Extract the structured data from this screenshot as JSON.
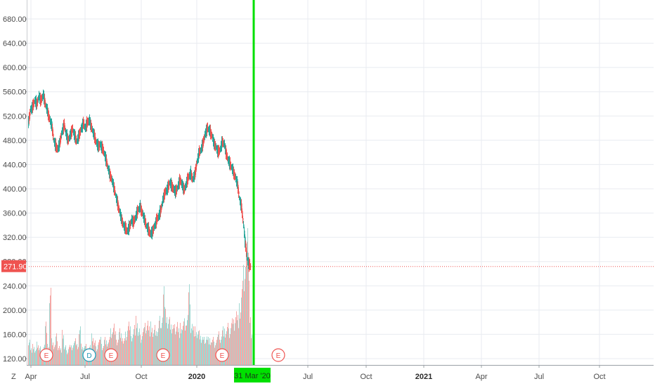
{
  "chart_data": {
    "type": "candlestick",
    "title": "",
    "y_axis": {
      "ticks": [
        "120.00",
        "160.00",
        "200.00",
        "240.00",
        "280.00",
        "320.00",
        "360.00",
        "400.00",
        "440.00",
        "480.00",
        "520.00",
        "560.00",
        "600.00",
        "640.00",
        "680.00"
      ],
      "values": [
        120,
        160,
        200,
        240,
        280,
        320,
        360,
        400,
        440,
        480,
        520,
        560,
        600,
        640,
        680
      ],
      "ylim": [
        112,
        700
      ]
    },
    "x_axis": {
      "ticks": [
        {
          "label": "Apr",
          "bold": false
        },
        {
          "label": "Jul",
          "bold": false
        },
        {
          "label": "Oct",
          "bold": false
        },
        {
          "label": "2020",
          "bold": true
        },
        {
          "label": "Jul",
          "bold": false
        },
        {
          "label": "Oct",
          "bold": false
        },
        {
          "label": "2021",
          "bold": true
        },
        {
          "label": "Apr",
          "bold": false
        },
        {
          "label": "Jul",
          "bold": false
        },
        {
          "label": "Oct",
          "bold": false
        }
      ]
    },
    "current_price": {
      "label": "271.90",
      "value": 271.9,
      "color": "#ef5350"
    },
    "cursor": {
      "date_label": "31 Mar '20",
      "color": "#00e000"
    },
    "corner_label": "Z",
    "colors": {
      "up": "#26a69a",
      "down": "#ef5350",
      "volume_up": "#9fd8d2",
      "volume_down": "#f5a9a7",
      "grid": "#e8ebf0"
    },
    "price_path": [
      [
        0,
        510
      ],
      [
        3,
        530
      ],
      [
        6,
        535
      ],
      [
        9,
        545
      ],
      [
        12,
        540
      ],
      [
        15,
        552
      ],
      [
        18,
        545
      ],
      [
        21,
        555
      ],
      [
        24,
        540
      ],
      [
        27,
        528
      ],
      [
        30,
        515
      ],
      [
        33,
        505
      ],
      [
        36,
        480
      ],
      [
        39,
        470
      ],
      [
        42,
        465
      ],
      [
        45,
        478
      ],
      [
        48,
        495
      ],
      [
        51,
        505
      ],
      [
        54,
        488
      ],
      [
        57,
        480
      ],
      [
        60,
        490
      ],
      [
        63,
        498
      ],
      [
        66,
        486
      ],
      [
        69,
        478
      ],
      [
        72,
        488
      ],
      [
        75,
        498
      ],
      [
        78,
        508
      ],
      [
        81,
        500
      ],
      [
        84,
        510
      ],
      [
        87,
        512
      ],
      [
        90,
        500
      ],
      [
        93,
        490
      ],
      [
        96,
        478
      ],
      [
        99,
        470
      ],
      [
        102,
        472
      ],
      [
        105,
        468
      ],
      [
        108,
        458
      ],
      [
        111,
        445
      ],
      [
        114,
        430
      ],
      [
        117,
        420
      ],
      [
        120,
        410
      ],
      [
        123,
        395
      ],
      [
        126,
        380
      ],
      [
        129,
        365
      ],
      [
        132,
        352
      ],
      [
        135,
        340
      ],
      [
        138,
        335
      ],
      [
        141,
        330
      ],
      [
        144,
        338
      ],
      [
        147,
        348
      ],
      [
        150,
        345
      ],
      [
        153,
        355
      ],
      [
        156,
        365
      ],
      [
        159,
        370
      ],
      [
        162,
        360
      ],
      [
        165,
        350
      ],
      [
        168,
        338
      ],
      [
        171,
        332
      ],
      [
        174,
        325
      ],
      [
        177,
        330
      ],
      [
        180,
        340
      ],
      [
        183,
        350
      ],
      [
        186,
        356
      ],
      [
        189,
        368
      ],
      [
        192,
        385
      ],
      [
        195,
        395
      ],
      [
        198,
        400
      ],
      [
        201,
        410
      ],
      [
        204,
        405
      ],
      [
        207,
        398
      ],
      [
        210,
        395
      ],
      [
        213,
        405
      ],
      [
        216,
        415
      ],
      [
        219,
        405
      ],
      [
        222,
        398
      ],
      [
        225,
        410
      ],
      [
        228,
        420
      ],
      [
        231,
        425
      ],
      [
        234,
        415
      ],
      [
        237,
        425
      ],
      [
        240,
        445
      ],
      [
        243,
        460
      ],
      [
        246,
        465
      ],
      [
        249,
        478
      ],
      [
        252,
        492
      ],
      [
        255,
        500
      ],
      [
        258,
        495
      ],
      [
        261,
        488
      ],
      [
        264,
        475
      ],
      [
        267,
        468
      ],
      [
        270,
        460
      ],
      [
        273,
        465
      ],
      [
        276,
        478
      ],
      [
        279,
        472
      ],
      [
        282,
        455
      ],
      [
        285,
        445
      ],
      [
        288,
        438
      ],
      [
        291,
        430
      ],
      [
        294,
        420
      ],
      [
        297,
        410
      ],
      [
        300,
        385
      ],
      [
        303,
        370
      ],
      [
        306,
        340
      ],
      [
        308,
        315
      ],
      [
        310,
        295
      ],
      [
        312,
        280
      ],
      [
        314,
        275
      ],
      [
        316,
        272
      ]
    ],
    "volume": [
      [
        0,
        40
      ],
      [
        3,
        25
      ],
      [
        6,
        30
      ],
      [
        9,
        22
      ],
      [
        12,
        35
      ],
      [
        15,
        28
      ],
      [
        18,
        20
      ],
      [
        21,
        32
      ],
      [
        24,
        65
      ],
      [
        27,
        30
      ],
      [
        30,
        110
      ],
      [
        33,
        40
      ],
      [
        36,
        30
      ],
      [
        39,
        45
      ],
      [
        42,
        30
      ],
      [
        45,
        25
      ],
      [
        48,
        50
      ],
      [
        51,
        28
      ],
      [
        54,
        22
      ],
      [
        57,
        30
      ],
      [
        60,
        28
      ],
      [
        63,
        35
      ],
      [
        66,
        40
      ],
      [
        69,
        30
      ],
      [
        72,
        55
      ],
      [
        75,
        32
      ],
      [
        78,
        28
      ],
      [
        81,
        30
      ],
      [
        84,
        25
      ],
      [
        87,
        30
      ],
      [
        90,
        45
      ],
      [
        93,
        35
      ],
      [
        96,
        28
      ],
      [
        99,
        38
      ],
      [
        102,
        40
      ],
      [
        105,
        30
      ],
      [
        108,
        42
      ],
      [
        111,
        35
      ],
      [
        114,
        40
      ],
      [
        117,
        55
      ],
      [
        120,
        62
      ],
      [
        123,
        48
      ],
      [
        126,
        40
      ],
      [
        129,
        55
      ],
      [
        132,
        45
      ],
      [
        135,
        38
      ],
      [
        138,
        50
      ],
      [
        141,
        65
      ],
      [
        144,
        55
      ],
      [
        147,
        48
      ],
      [
        150,
        60
      ],
      [
        153,
        70
      ],
      [
        156,
        52
      ],
      [
        159,
        45
      ],
      [
        162,
        55
      ],
      [
        165,
        60
      ],
      [
        168,
        70
      ],
      [
        171,
        58
      ],
      [
        174,
        62
      ],
      [
        177,
        50
      ],
      [
        180,
        60
      ],
      [
        183,
        55
      ],
      [
        186,
        70
      ],
      [
        189,
        75
      ],
      [
        192,
        118
      ],
      [
        195,
        80
      ],
      [
        198,
        65
      ],
      [
        201,
        72
      ],
      [
        204,
        60
      ],
      [
        207,
        58
      ],
      [
        210,
        68
      ],
      [
        213,
        55
      ],
      [
        216,
        60
      ],
      [
        219,
        62
      ],
      [
        222,
        70
      ],
      [
        225,
        75
      ],
      [
        228,
        115
      ],
      [
        231,
        65
      ],
      [
        234,
        58
      ],
      [
        237,
        55
      ],
      [
        240,
        48
      ],
      [
        243,
        52
      ],
      [
        246,
        42
      ],
      [
        249,
        40
      ],
      [
        252,
        45
      ],
      [
        255,
        42
      ],
      [
        258,
        38
      ],
      [
        261,
        40
      ],
      [
        264,
        35
      ],
      [
        267,
        42
      ],
      [
        270,
        48
      ],
      [
        273,
        45
      ],
      [
        276,
        58
      ],
      [
        279,
        52
      ],
      [
        282,
        60
      ],
      [
        285,
        55
      ],
      [
        288,
        70
      ],
      [
        291,
        65
      ],
      [
        294,
        85
      ],
      [
        297,
        75
      ],
      [
        300,
        88
      ],
      [
        303,
        120
      ],
      [
        306,
        150
      ],
      [
        308,
        175
      ],
      [
        310,
        195
      ],
      [
        312,
        160
      ],
      [
        314,
        80
      ],
      [
        316,
        45
      ]
    ],
    "events": [
      {
        "label": "E",
        "type": "earnings",
        "status": "past"
      },
      {
        "label": "D",
        "type": "dividend",
        "status": "past"
      },
      {
        "label": "E",
        "type": "earnings",
        "status": "past"
      },
      {
        "label": "E",
        "type": "earnings",
        "status": "past"
      },
      {
        "label": "E",
        "type": "earnings",
        "status": "past"
      },
      {
        "label": "E",
        "type": "earnings",
        "status": "future"
      }
    ]
  }
}
